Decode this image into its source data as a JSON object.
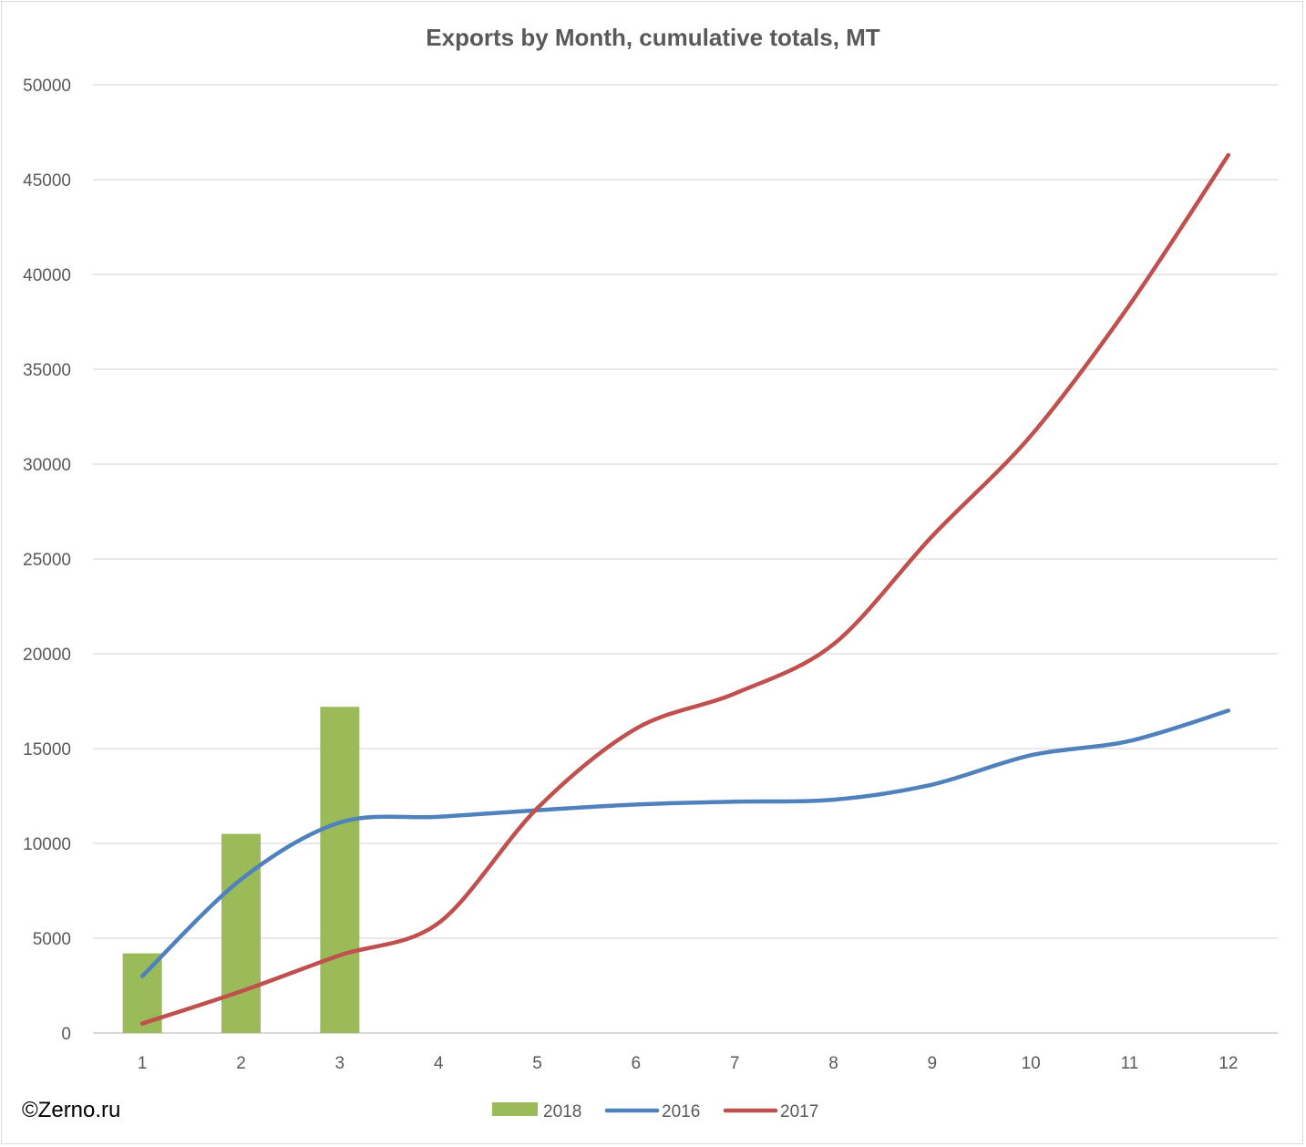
{
  "chart_data": {
    "type": "bar",
    "title": "Exports by Month, cumulative totals, MT",
    "xlabel": "",
    "ylabel": "",
    "ylim": [
      0,
      50000
    ],
    "yticks": [
      0,
      5000,
      10000,
      15000,
      20000,
      25000,
      30000,
      35000,
      40000,
      45000,
      50000
    ],
    "categories": [
      "1",
      "2",
      "3",
      "4",
      "5",
      "6",
      "7",
      "8",
      "9",
      "10",
      "11",
      "12"
    ],
    "grid": true,
    "legend_position": "bottom",
    "series": [
      {
        "name": "2018",
        "type": "bar",
        "color": "#9bbb59",
        "values": [
          4200,
          10500,
          17200,
          null,
          null,
          null,
          null,
          null,
          null,
          null,
          null,
          null
        ]
      },
      {
        "name": "2016",
        "type": "line",
        "color": "#4f81bd",
        "values": [
          3000,
          8100,
          11100,
          11400,
          11750,
          12050,
          12200,
          12300,
          13100,
          14650,
          15400,
          17000
        ]
      },
      {
        "name": "2017",
        "type": "line",
        "color": "#c0504d",
        "values": [
          500,
          2200,
          4100,
          5800,
          11850,
          16050,
          17900,
          20500,
          26200,
          31500,
          38400,
          46300
        ]
      }
    ]
  },
  "watermark": "©Zerno.ru"
}
